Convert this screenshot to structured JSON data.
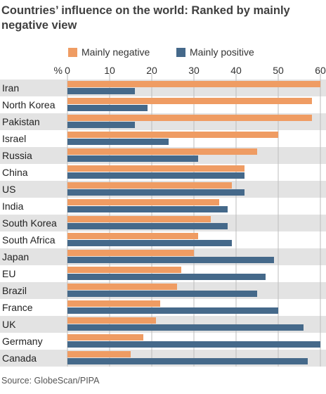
{
  "title": "Countries’ influence on the world: Ranked by mainly negative view",
  "source": "Source: GlobeScan/PIPA",
  "axis": {
    "unit_label": "%"
  },
  "colors": {
    "negative": "#ef9c63",
    "positive": "#45698a",
    "row_stripe": "#e3e3e3",
    "grid": "#bdbdbd"
  },
  "chart_data": {
    "type": "bar",
    "orientation": "horizontal",
    "title": "Countries’ influence on the world: Ranked by mainly negative view",
    "xlabel": "%",
    "ylabel": "",
    "xlim": [
      0,
      60
    ],
    "xticks": [
      0,
      10,
      20,
      30,
      40,
      50,
      60
    ],
    "grid": true,
    "legend_position": "top",
    "categories": [
      "Iran",
      "North Korea",
      "Pakistan",
      "Israel",
      "Russia",
      "China",
      "US",
      "India",
      "South Korea",
      "South Africa",
      "Japan",
      "EU",
      "Brazil",
      "France",
      "UK",
      "Germany",
      "Canada"
    ],
    "series": [
      {
        "name": "Mainly negative",
        "color": "#ef9c63",
        "values": [
          60,
          58,
          58,
          50,
          45,
          42,
          39,
          36,
          34,
          31,
          30,
          27,
          26,
          22,
          21,
          18,
          15
        ]
      },
      {
        "name": "Mainly positive",
        "color": "#45698a",
        "values": [
          16,
          19,
          16,
          24,
          31,
          42,
          42,
          38,
          38,
          39,
          49,
          47,
          45,
          50,
          56,
          60,
          57
        ]
      }
    ]
  }
}
